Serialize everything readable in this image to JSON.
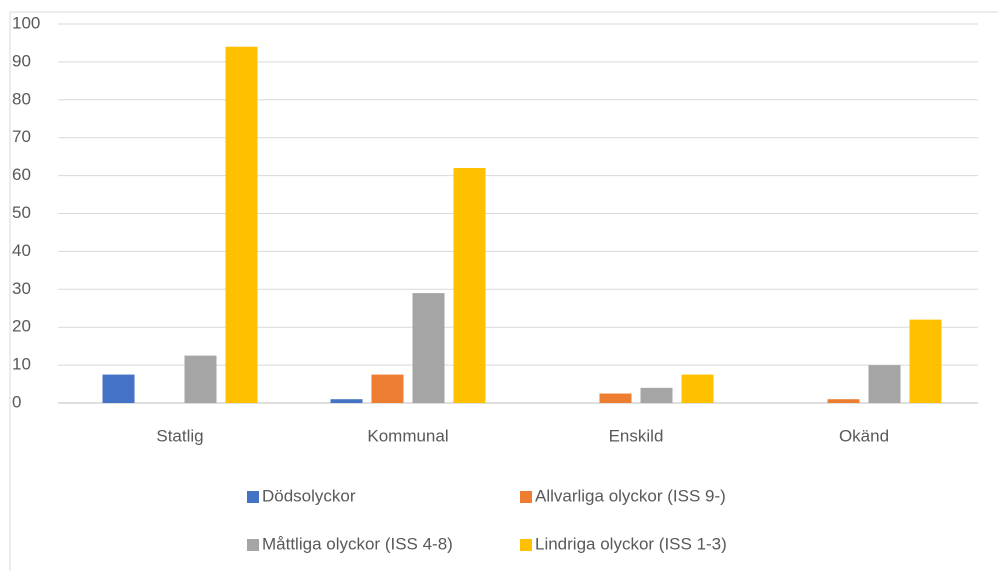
{
  "chart_data": {
    "type": "bar",
    "categories": [
      "Statlig",
      "Kommunal",
      "Enskild",
      "Okänd"
    ],
    "series": [
      {
        "name": "Dödsolyckor",
        "color": "#4472c4",
        "values": [
          7.5,
          1,
          0,
          0
        ]
      },
      {
        "name": "Allvarliga olyckor (ISS 9-)",
        "color": "#ed7d31",
        "values": [
          0,
          7.5,
          2.5,
          1
        ]
      },
      {
        "name": "Måttliga olyckor (ISS 4-8)",
        "color": "#a5a5a5",
        "values": [
          12.5,
          29,
          4,
          10
        ]
      },
      {
        "name": "Lindriga olyckor (ISS 1-3)",
        "color": "#ffc000",
        "values": [
          94,
          62,
          7.5,
          22
        ]
      }
    ],
    "ylim": [
      0,
      100
    ],
    "yticks": [
      0,
      10,
      20,
      30,
      40,
      50,
      60,
      70,
      80,
      90,
      100
    ],
    "grid": true,
    "legend": "bottom"
  }
}
